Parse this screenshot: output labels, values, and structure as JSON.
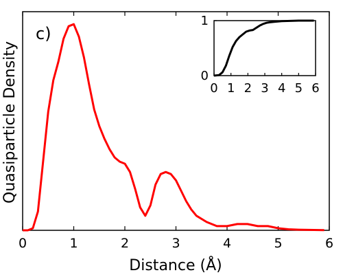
{
  "chart_data": [
    {
      "type": "line",
      "panel_label": "c)",
      "xlabel": "Distance (Å)",
      "ylabel": "Quasiparticle Density",
      "xlim": [
        0,
        6
      ],
      "x_ticks": [
        "0",
        "1",
        "2",
        "3",
        "4",
        "5",
        "6"
      ],
      "y_ticks": [],
      "ylim": [
        0,
        1.05
      ],
      "grid": false,
      "series": [
        {
          "color": "#ff0000",
          "x": [
            0,
            0.1,
            0.2,
            0.3,
            0.4,
            0.5,
            0.6,
            0.7,
            0.8,
            0.9,
            1.0,
            1.1,
            1.2,
            1.3,
            1.4,
            1.5,
            1.6,
            1.7,
            1.8,
            1.9,
            2.0,
            2.1,
            2.2,
            2.3,
            2.4,
            2.5,
            2.6,
            2.7,
            2.8,
            2.9,
            3.0,
            3.1,
            3.2,
            3.3,
            3.4,
            3.6,
            3.8,
            4.0,
            4.2,
            4.4,
            4.6,
            4.8,
            5.0,
            5.2,
            5.4,
            5.6,
            5.9
          ],
          "values": [
            0,
            0,
            0.01,
            0.09,
            0.33,
            0.57,
            0.72,
            0.81,
            0.92,
            0.98,
            0.99,
            0.93,
            0.83,
            0.7,
            0.58,
            0.5,
            0.44,
            0.39,
            0.35,
            0.33,
            0.32,
            0.28,
            0.2,
            0.11,
            0.07,
            0.12,
            0.22,
            0.27,
            0.28,
            0.27,
            0.24,
            0.19,
            0.14,
            0.1,
            0.07,
            0.04,
            0.02,
            0.02,
            0.03,
            0.03,
            0.02,
            0.02,
            0.01,
            0.005,
            0.003,
            0.002,
            0.001
          ]
        }
      ]
    },
    {
      "type": "line",
      "role": "inset",
      "xlim": [
        0,
        6
      ],
      "ylim": [
        0,
        1
      ],
      "x_ticks": [
        "0",
        "1",
        "2",
        "3",
        "4",
        "5",
        "6"
      ],
      "y_ticks": [
        "0",
        "1"
      ],
      "grid": false,
      "series": [
        {
          "color": "#000000",
          "x": [
            0,
            0.3,
            0.5,
            0.7,
            0.9,
            1.1,
            1.3,
            1.5,
            1.7,
            1.9,
            2.1,
            2.3,
            2.5,
            2.7,
            2.9,
            3.1,
            3.3,
            3.6,
            4.0,
            4.5,
            5.0,
            5.5,
            5.9
          ],
          "values": [
            0,
            0.01,
            0.06,
            0.18,
            0.36,
            0.52,
            0.63,
            0.7,
            0.75,
            0.8,
            0.82,
            0.83,
            0.87,
            0.91,
            0.94,
            0.96,
            0.97,
            0.98,
            0.99,
            0.995,
            1.0,
            1.0,
            1.0
          ]
        }
      ]
    }
  ]
}
